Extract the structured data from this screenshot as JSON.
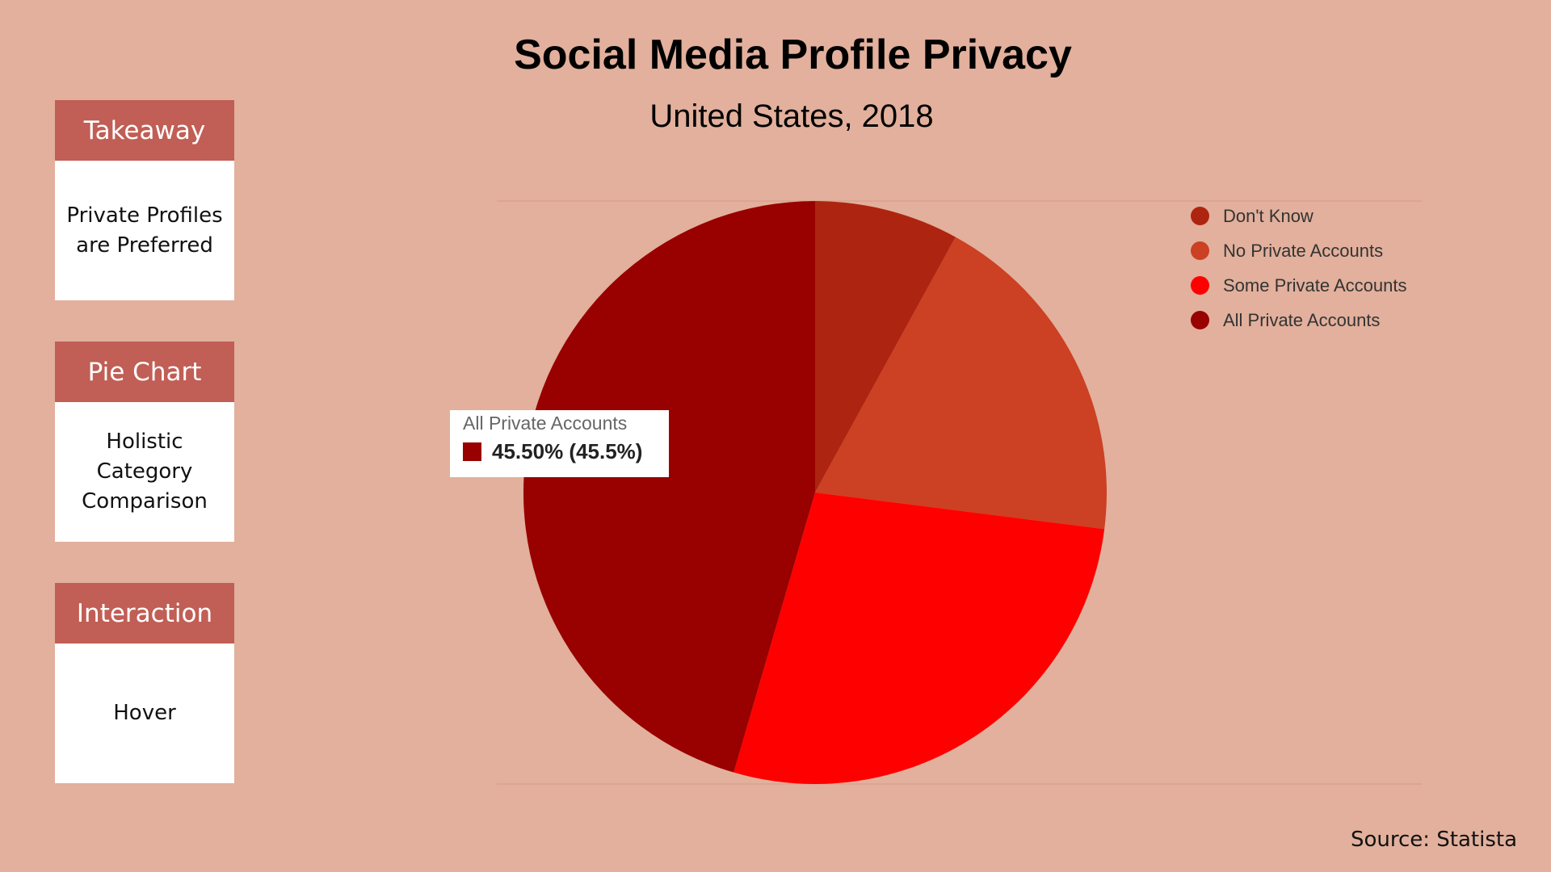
{
  "cards": [
    {
      "header": "Takeaway",
      "body": "Private Profiles\nare Preferred"
    },
    {
      "header": "Pie Chart",
      "body": "Holistic\nCategory\nComparison"
    },
    {
      "header": "Interaction",
      "body": "Hover"
    }
  ],
  "tooltip": {
    "label": "All Private Accounts",
    "value_text": "45.50% (45.5%)",
    "color": "#990000"
  },
  "source": "Source: Statista",
  "chart_data": {
    "type": "pie",
    "title": "Social Media Profile Privacy",
    "subtitle": "United States, 2018",
    "categories": [
      "Don't Know",
      "No Private Accounts",
      "Some Private Accounts",
      "All Private Accounts"
    ],
    "values": [
      8.0,
      19.0,
      27.5,
      45.5
    ],
    "colors": [
      "#ad2510",
      "#cc4023",
      "#ff0000",
      "#990000"
    ],
    "unit": "%",
    "legend_position": "top-right"
  }
}
